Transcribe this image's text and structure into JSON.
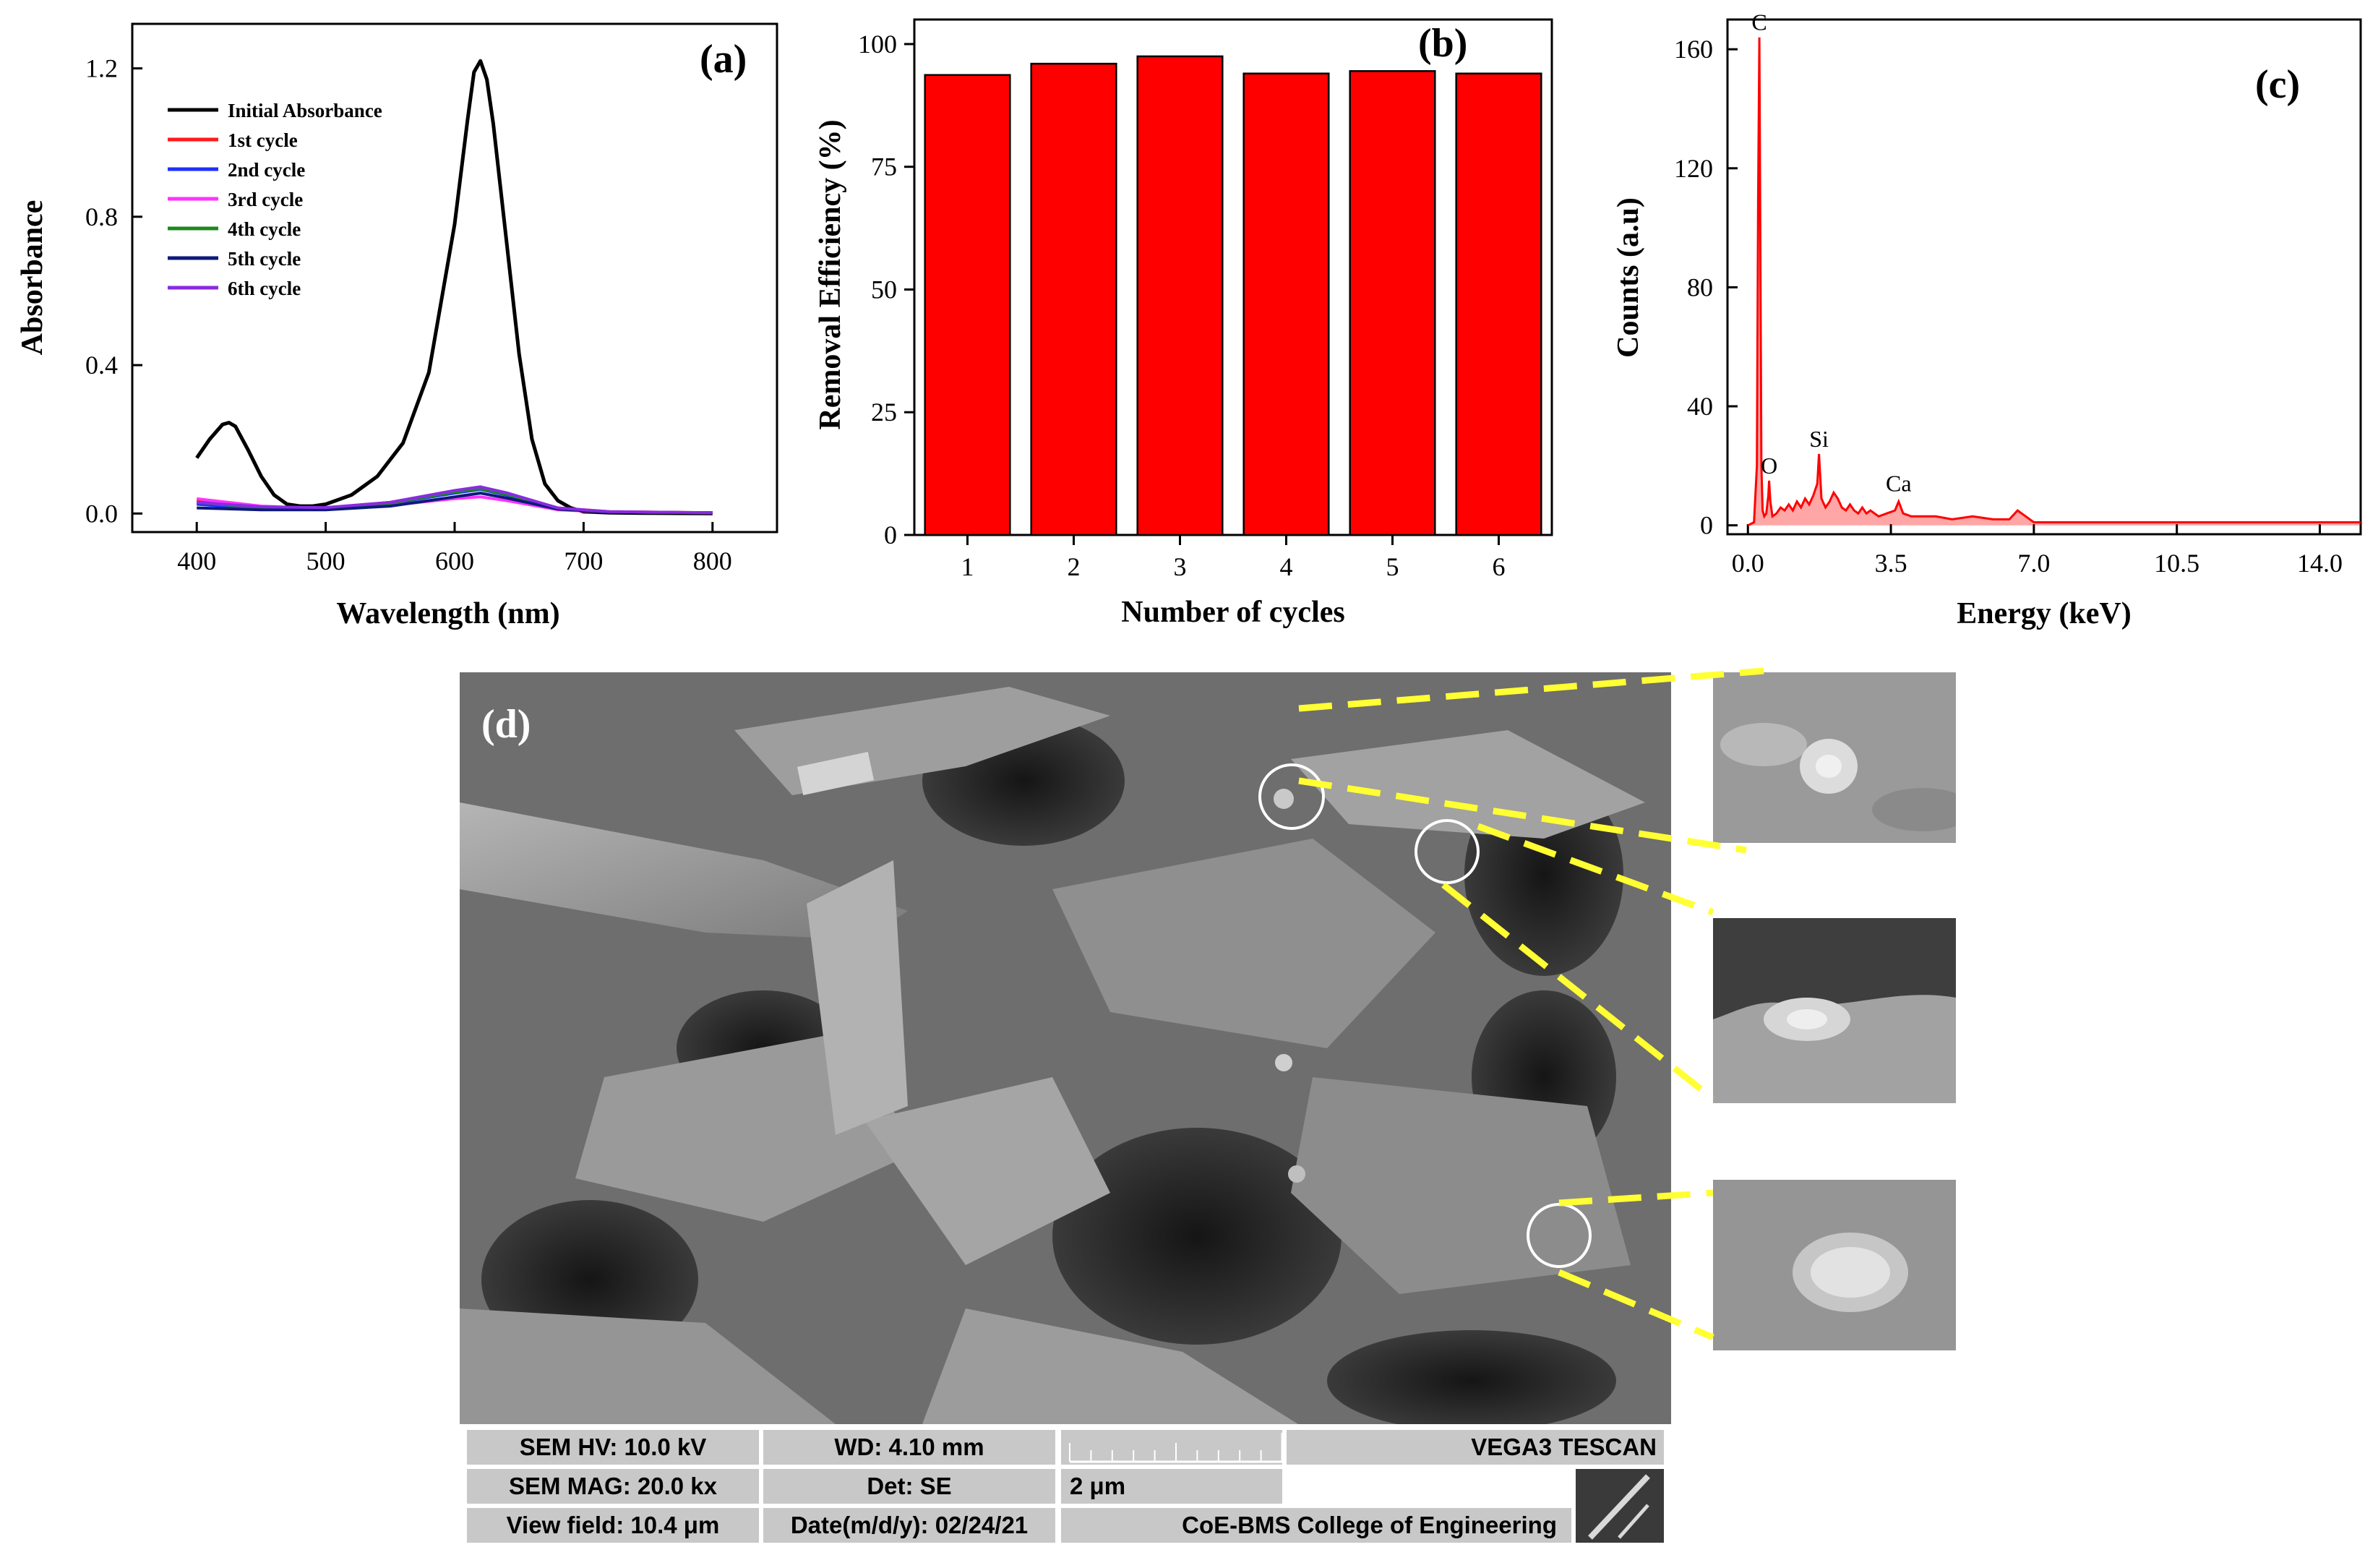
{
  "colors": {
    "initial": "#000000",
    "c1": "#ff1a1a",
    "c2": "#1f2fff",
    "c3": "#ff33ff",
    "c4": "#1b8a1b",
    "c5": "#0d1a7a",
    "c6": "#8a2be2",
    "bar": "#ff0000",
    "eds": "#ff0000",
    "leader": "#ffff33"
  },
  "panel_a": {
    "label": "(a)",
    "chart_data": {
      "type": "line",
      "xlabel": "Wavelength (nm)",
      "ylabel": "Absorbance",
      "xlim": [
        350,
        850
      ],
      "ylim": [
        -0.05,
        1.32
      ],
      "xticks": [
        "400",
        "500",
        "600",
        "700",
        "800"
      ],
      "yticks": [
        "0.0",
        "0.4",
        "0.8",
        "1.2"
      ],
      "legend_position": "top-left",
      "series": [
        {
          "name": "Initial Absorbance",
          "x": [
            400,
            410,
            420,
            425,
            430,
            440,
            450,
            460,
            470,
            480,
            490,
            500,
            520,
            540,
            560,
            580,
            600,
            610,
            615,
            620,
            625,
            630,
            640,
            650,
            660,
            670,
            680,
            690,
            700,
            720,
            750,
            800
          ],
          "y": [
            0.15,
            0.2,
            0.24,
            0.245,
            0.235,
            0.17,
            0.1,
            0.05,
            0.025,
            0.02,
            0.02,
            0.025,
            0.05,
            0.1,
            0.19,
            0.38,
            0.78,
            1.06,
            1.19,
            1.22,
            1.17,
            1.05,
            0.74,
            0.43,
            0.2,
            0.08,
            0.035,
            0.015,
            0.005,
            0.002,
            0.001,
            0.0
          ]
        },
        {
          "name": "1st cycle",
          "x": [
            400,
            450,
            500,
            550,
            600,
            620,
            640,
            680,
            720,
            800
          ],
          "y": [
            0.035,
            0.015,
            0.015,
            0.03,
            0.06,
            0.07,
            0.055,
            0.015,
            0.005,
            0.002
          ]
        },
        {
          "name": "2nd cycle",
          "x": [
            400,
            450,
            500,
            550,
            600,
            620,
            640,
            680,
            720,
            800
          ],
          "y": [
            0.025,
            0.012,
            0.012,
            0.027,
            0.055,
            0.065,
            0.05,
            0.013,
            0.004,
            0.002
          ]
        },
        {
          "name": "3rd cycle",
          "x": [
            400,
            450,
            500,
            550,
            600,
            620,
            640,
            680,
            720,
            800
          ],
          "y": [
            0.04,
            0.02,
            0.013,
            0.022,
            0.04,
            0.045,
            0.035,
            0.01,
            0.004,
            0.002
          ]
        },
        {
          "name": "4th cycle",
          "x": [
            400,
            450,
            500,
            550,
            600,
            620,
            640,
            680,
            720,
            800
          ],
          "y": [
            0.03,
            0.015,
            0.015,
            0.028,
            0.058,
            0.067,
            0.052,
            0.014,
            0.004,
            0.002
          ]
        },
        {
          "name": "5th cycle",
          "x": [
            400,
            450,
            500,
            550,
            600,
            620,
            640,
            680,
            720,
            800
          ],
          "y": [
            0.015,
            0.01,
            0.01,
            0.02,
            0.045,
            0.055,
            0.042,
            0.012,
            0.004,
            0.002
          ]
        },
        {
          "name": "6th cycle",
          "x": [
            400,
            450,
            500,
            550,
            600,
            620,
            640,
            680,
            720,
            800
          ],
          "y": [
            0.03,
            0.018,
            0.016,
            0.03,
            0.062,
            0.072,
            0.056,
            0.015,
            0.005,
            0.002
          ]
        }
      ]
    }
  },
  "panel_b": {
    "label": "(b)",
    "chart_data": {
      "type": "bar",
      "xlabel": "Number of cycles",
      "ylabel": "Removal Efficiency (%)",
      "categories": [
        "1",
        "2",
        "3",
        "4",
        "5",
        "6"
      ],
      "values": [
        93.7,
        96.0,
        97.5,
        94.0,
        94.5,
        94.0
      ],
      "ylim": [
        0,
        105
      ],
      "yticks": [
        "0",
        "25",
        "50",
        "75",
        "100"
      ]
    }
  },
  "panel_c": {
    "label": "(c)",
    "chart_data": {
      "type": "line",
      "xlabel": "Energy (keV)",
      "ylabel": "Counts (a.u)",
      "xlim": [
        -0.5,
        15.0
      ],
      "ylim": [
        -3,
        170
      ],
      "xticks": [
        "0.0",
        "3.5",
        "7.0",
        "10.5",
        "14.0"
      ],
      "yticks": [
        "0",
        "40",
        "80",
        "120",
        "160"
      ],
      "annotations": [
        {
          "text": "C",
          "x": 0.28,
          "y": 164
        },
        {
          "text": "O",
          "x": 0.52,
          "y": 15
        },
        {
          "text": "Si",
          "x": 1.74,
          "y": 24
        },
        {
          "text": "Ca",
          "x": 3.69,
          "y": 9
        }
      ],
      "peaks": {
        "x": [
          0.0,
          0.15,
          0.22,
          0.25,
          0.28,
          0.3,
          0.33,
          0.36,
          0.4,
          0.45,
          0.5,
          0.52,
          0.55,
          0.6,
          0.7,
          0.8,
          0.9,
          1.0,
          1.1,
          1.2,
          1.3,
          1.4,
          1.5,
          1.6,
          1.7,
          1.74,
          1.8,
          1.9,
          2.0,
          2.1,
          2.2,
          2.3,
          2.4,
          2.5,
          2.6,
          2.7,
          2.8,
          2.9,
          3.0,
          3.2,
          3.4,
          3.6,
          3.69,
          3.8,
          4.0,
          4.3,
          4.6,
          5.0,
          5.5,
          6.0,
          6.4,
          6.6,
          7.0,
          8.0,
          9.0,
          10.0,
          11.0,
          12.0,
          13.0,
          14.0,
          15.0
        ],
        "y": [
          0,
          1,
          20,
          110,
          164,
          108,
          20,
          5,
          3,
          4,
          10,
          15,
          8,
          3,
          4,
          6,
          5,
          7,
          5,
          8,
          6,
          9,
          7,
          10,
          14,
          24,
          9,
          6,
          8,
          11,
          9,
          6,
          5,
          7,
          5,
          4,
          6,
          4,
          5,
          3,
          4,
          5,
          8,
          4,
          3,
          3,
          3,
          2,
          3,
          2,
          2,
          5,
          1,
          1,
          1,
          1,
          1,
          1,
          1,
          1,
          1
        ]
      }
    }
  },
  "panel_d": {
    "label": "(d)",
    "info": {
      "hv": "SEM HV: 10.0 kV",
      "wd": "WD: 4.10 mm",
      "vendor": "VEGA3 TESCAN",
      "mag": "SEM MAG: 20.0 kx",
      "det": "Det: SE",
      "scale": "2 μm",
      "view": "View field: 10.4 μm",
      "date": "Date(m/d/y): 02/24/21",
      "lab": "CoE-BMS College of Engineering"
    }
  }
}
